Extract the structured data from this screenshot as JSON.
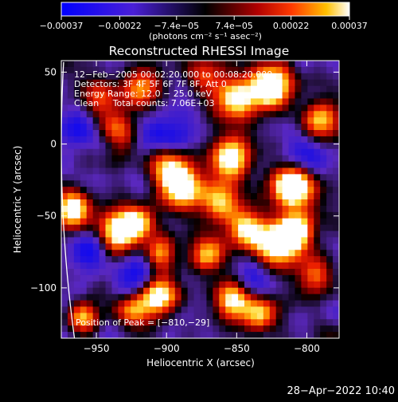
{
  "chart_data": {
    "type": "heatmap",
    "title": "Reconstructed RHESSI Image",
    "xlabel": "Heliocentric X (arcsec)",
    "ylabel": "Heliocentric Y (arcsec)",
    "xlim": [
      -975,
      -777
    ],
    "ylim": [
      -135,
      58
    ],
    "x_ticks": [
      {
        "value": -950,
        "label": "−950"
      },
      {
        "value": -900,
        "label": "−900"
      },
      {
        "value": -850,
        "label": "−850"
      },
      {
        "value": -800,
        "label": "−800"
      }
    ],
    "y_ticks": [
      {
        "value": 50,
        "label": "50"
      },
      {
        "value": 0,
        "label": "0"
      },
      {
        "value": -50,
        "label": "−50"
      },
      {
        "value": -100,
        "label": "−100"
      }
    ],
    "colorbar": {
      "min": -0.00037,
      "max": 0.00037,
      "tick_labels": [
        {
          "value": -0.00037,
          "label": "−0.00037"
        },
        {
          "value": -0.00022,
          "label": "−0.00022"
        },
        {
          "value": -7.4e-05,
          "label": "−7.4e−05"
        },
        {
          "value": 7.4e-05,
          "label": "7.4e−05"
        },
        {
          "value": 0.00022,
          "label": "0.00022"
        },
        {
          "value": 0.00037,
          "label": "0.00037"
        }
      ],
      "units": "(photons cm⁻² s⁻¹ asec⁻²)"
    },
    "annotations": [
      "12−Feb−2005 00:02:20.000 to 00:08:20.000",
      "Detectors: 3F 4F 5F 6F 7F 8F, Att 0",
      "Energy Range: 12.0 − 25.0 keV",
      "Clean     Total counts: 7.06E+03"
    ],
    "peak_label": "Position of Peak = [−810,−29]",
    "peak_position": [
      -810,
      -29
    ],
    "limb": true,
    "grid": false,
    "grid_size": [
      44,
      44
    ],
    "hotspots": [
      {
        "x": -810,
        "y": -29,
        "w": 1.0,
        "s": 10
      },
      {
        "x": -825,
        "y": 40,
        "w": 0.9,
        "s": 11
      },
      {
        "x": -850,
        "y": 30,
        "w": 0.65,
        "s": 10
      },
      {
        "x": -853,
        "y": -10,
        "w": 0.75,
        "s": 10
      },
      {
        "x": -860,
        "y": -40,
        "w": 0.6,
        "s": 10
      },
      {
        "x": -843,
        "y": -60,
        "w": 0.7,
        "s": 9
      },
      {
        "x": -822,
        "y": -70,
        "w": 0.8,
        "s": 10
      },
      {
        "x": -808,
        "y": -60,
        "w": 0.75,
        "s": 9
      },
      {
        "x": -888,
        "y": -30,
        "w": 0.75,
        "s": 11
      },
      {
        "x": -900,
        "y": -15,
        "w": 0.6,
        "s": 10
      },
      {
        "x": -870,
        "y": -75,
        "w": 0.6,
        "s": 9
      },
      {
        "x": -935,
        "y": -60,
        "w": 0.75,
        "s": 10
      },
      {
        "x": -920,
        "y": -55,
        "w": 0.6,
        "s": 8
      },
      {
        "x": -967,
        "y": -45,
        "w": 0.8,
        "s": 9
      },
      {
        "x": -905,
        "y": -75,
        "w": 0.55,
        "s": 8
      },
      {
        "x": -905,
        "y": -105,
        "w": 0.8,
        "s": 9
      },
      {
        "x": -925,
        "y": -115,
        "w": 0.55,
        "s": 8
      },
      {
        "x": -852,
        "y": -108,
        "w": 0.7,
        "s": 10
      },
      {
        "x": -832,
        "y": -118,
        "w": 0.55,
        "s": 8
      },
      {
        "x": -918,
        "y": 38,
        "w": 0.5,
        "s": 10
      },
      {
        "x": -935,
        "y": 10,
        "w": 0.5,
        "s": 9
      },
      {
        "x": -948,
        "y": 32,
        "w": 0.4,
        "s": 9
      },
      {
        "x": -795,
        "y": -90,
        "w": 0.55,
        "s": 9
      },
      {
        "x": -790,
        "y": 18,
        "w": 0.6,
        "s": 9
      },
      {
        "x": -872,
        "y": 50,
        "w": 0.4,
        "s": 10
      },
      {
        "x": -960,
        "y": -120,
        "w": 0.5,
        "s": 8
      }
    ],
    "coldspots": [
      {
        "x": -900,
        "y": 5,
        "w": 0.35,
        "s": 12
      },
      {
        "x": -920,
        "y": -90,
        "w": 0.35,
        "s": 10
      },
      {
        "x": -955,
        "y": -75,
        "w": 0.3,
        "s": 10
      },
      {
        "x": -800,
        "y": -10,
        "w": 0.3,
        "s": 11
      },
      {
        "x": -960,
        "y": 10,
        "w": 0.3,
        "s": 10
      },
      {
        "x": -840,
        "y": -95,
        "w": 0.3,
        "s": 10
      }
    ]
  },
  "footer": {
    "timestamp": "28−Apr−2022 10:40"
  }
}
